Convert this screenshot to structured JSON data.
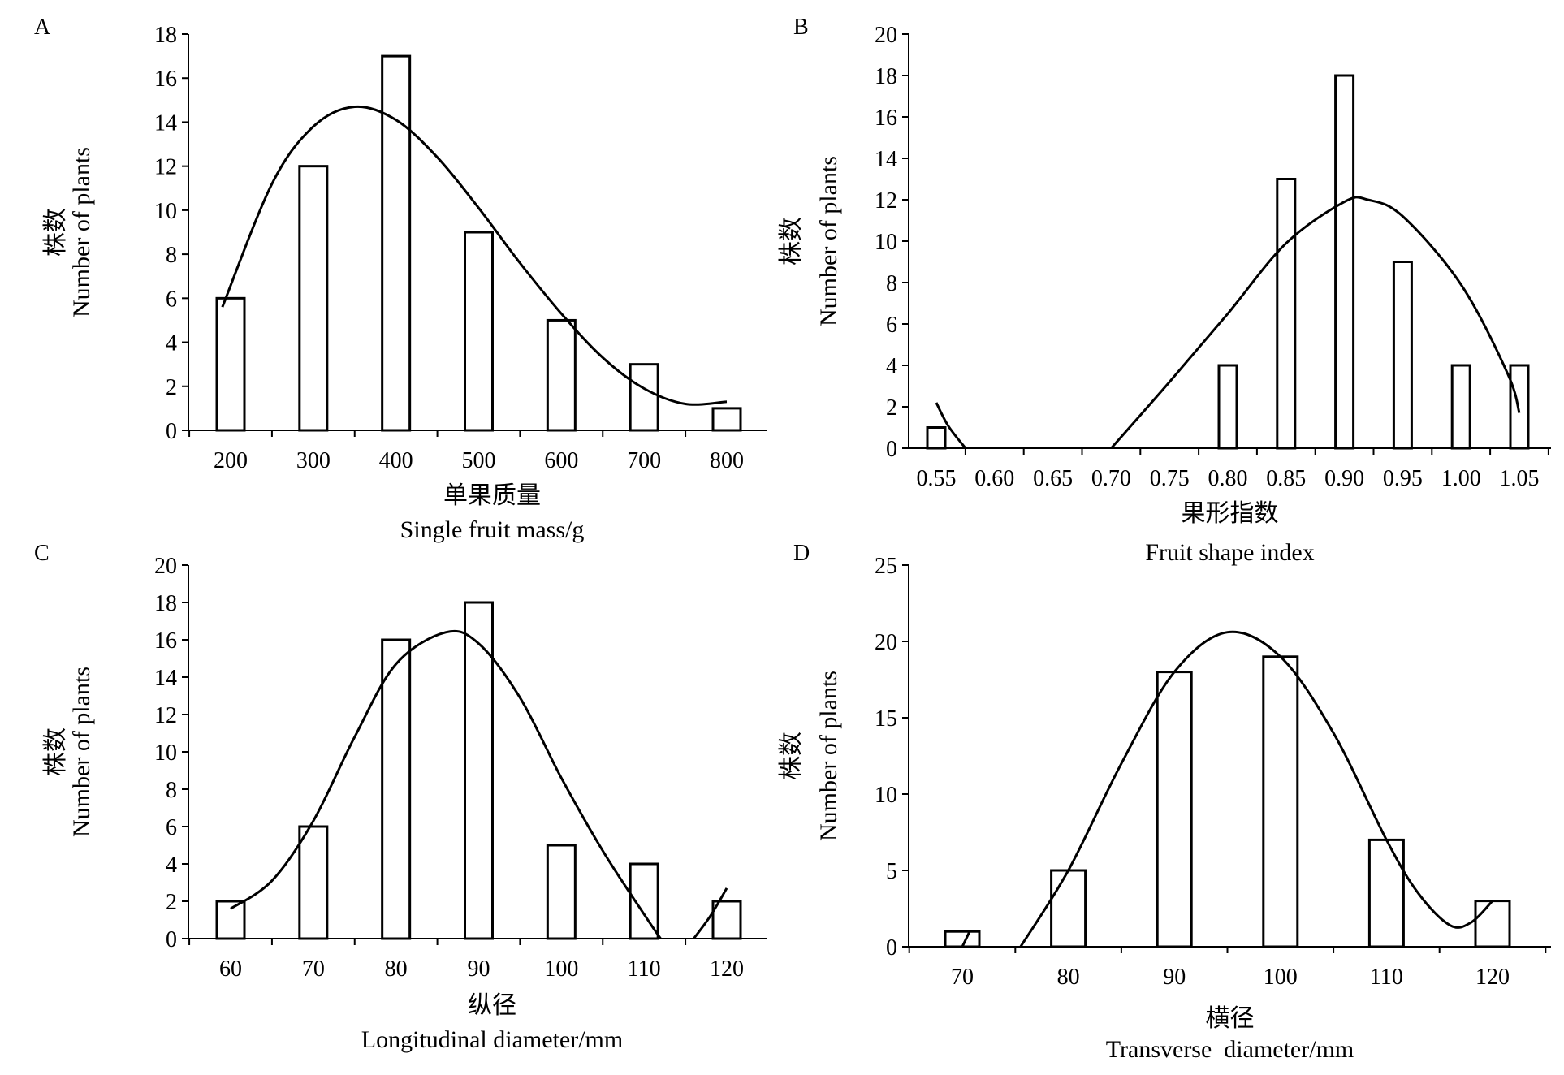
{
  "chart_data": [
    {
      "type": "bar",
      "panel_label": "A",
      "categories": [
        "200",
        "300",
        "400",
        "500",
        "600",
        "700",
        "800"
      ],
      "x": [
        200,
        300,
        400,
        500,
        600,
        700,
        800
      ],
      "values": [
        6,
        12,
        17,
        9,
        5,
        3,
        1
      ],
      "ylim": [
        0,
        18
      ],
      "yticks": [
        0,
        2,
        4,
        6,
        8,
        10,
        12,
        14,
        16,
        18
      ],
      "xlabel_cn": "单果质量",
      "xlabel": "Single fruit mass/g",
      "ylabel_cn": "株数",
      "ylabel": "Number of plants",
      "curve": [
        [
          190,
          5.6
        ],
        [
          250,
          11.2
        ],
        [
          300,
          13.8
        ],
        [
          350,
          14.7
        ],
        [
          400,
          14.1
        ],
        [
          450,
          12.4
        ],
        [
          500,
          10.1
        ],
        [
          550,
          7.6
        ],
        [
          600,
          5.3
        ],
        [
          650,
          3.3
        ],
        [
          700,
          1.9
        ],
        [
          750,
          1.2
        ],
        [
          800,
          1.3
        ]
      ]
    },
    {
      "type": "bar",
      "panel_label": "B",
      "categories": [
        "0.55",
        "0.60",
        "0.65",
        "0.70",
        "0.75",
        "0.80",
        "0.85",
        "0.90",
        "0.95",
        "1.00",
        "1.05"
      ],
      "x": [
        0.55,
        0.8,
        0.85,
        0.9,
        0.95,
        1.0,
        1.05
      ],
      "values": [
        1,
        4,
        13,
        18,
        9,
        4,
        4
      ],
      "ylim": [
        0,
        20
      ],
      "yticks": [
        0,
        2,
        4,
        6,
        8,
        10,
        12,
        14,
        16,
        18,
        20
      ],
      "xlabel_cn": "果形指数",
      "xlabel": "Fruit shape index",
      "ylabel_cn": "株数",
      "ylabel": "Number of plants",
      "curve_segments": [
        [
          [
            0.55,
            2.2
          ],
          [
            0.56,
            1.1
          ],
          [
            0.575,
            0.0
          ]
        ],
        [
          [
            0.7,
            0.0
          ],
          [
            0.75,
            3.2
          ],
          [
            0.8,
            6.5
          ],
          [
            0.85,
            9.9
          ],
          [
            0.9,
            11.9
          ],
          [
            0.92,
            12.0
          ],
          [
            0.95,
            11.2
          ],
          [
            1.0,
            7.9
          ],
          [
            1.04,
            3.6
          ],
          [
            1.05,
            1.7
          ]
        ]
      ]
    },
    {
      "type": "bar",
      "panel_label": "C",
      "categories": [
        "60",
        "70",
        "80",
        "90",
        "100",
        "110",
        "120"
      ],
      "x": [
        60,
        70,
        80,
        90,
        100,
        110,
        120
      ],
      "values": [
        2,
        6,
        16,
        18,
        5,
        4,
        2
      ],
      "ylim": [
        0,
        20
      ],
      "yticks": [
        0,
        2,
        4,
        6,
        8,
        10,
        12,
        14,
        16,
        18,
        20
      ],
      "xlabel_cn": "纵径",
      "xlabel": "Longitudinal diameter/mm",
      "ylabel_cn": "株数",
      "ylabel": "Number of plants",
      "curve_segments": [
        [
          [
            60,
            1.6
          ],
          [
            65,
            3.1
          ],
          [
            70,
            6.3
          ],
          [
            75,
            10.8
          ],
          [
            80,
            14.7
          ],
          [
            86,
            16.4
          ],
          [
            90,
            15.8
          ],
          [
            95,
            12.9
          ],
          [
            100,
            8.6
          ],
          [
            105,
            4.7
          ],
          [
            110,
            1.3
          ],
          [
            112,
            0.0
          ]
        ],
        [
          [
            116,
            0.0
          ],
          [
            118,
            1.2
          ],
          [
            120,
            2.7
          ]
        ]
      ]
    },
    {
      "type": "bar",
      "panel_label": "D",
      "categories": [
        "70",
        "80",
        "90",
        "100",
        "110",
        "120"
      ],
      "x": [
        70,
        80,
        90,
        100,
        110,
        120
      ],
      "values": [
        1,
        5,
        18,
        19,
        7,
        3
      ],
      "ylim": [
        0,
        25
      ],
      "yticks": [
        0,
        5,
        10,
        15,
        20,
        25
      ],
      "xlabel_cn": "横径",
      "xlabel": "Transverse  diameter/mm",
      "ylabel_cn": "株数",
      "ylabel": "Number of plants",
      "curve_segments": [
        [
          [
            70,
            0.0
          ],
          [
            70.7,
            1.0
          ]
        ],
        [
          [
            75.5,
            0.0
          ],
          [
            80,
            5.0
          ],
          [
            85,
            12.0
          ],
          [
            90,
            18.0
          ],
          [
            95,
            20.6
          ],
          [
            100,
            19.0
          ],
          [
            105,
            14.0
          ],
          [
            110,
            7.0
          ],
          [
            113,
            3.5
          ],
          [
            116,
            1.4
          ],
          [
            118,
            1.6
          ],
          [
            120,
            3.0
          ]
        ]
      ]
    }
  ]
}
